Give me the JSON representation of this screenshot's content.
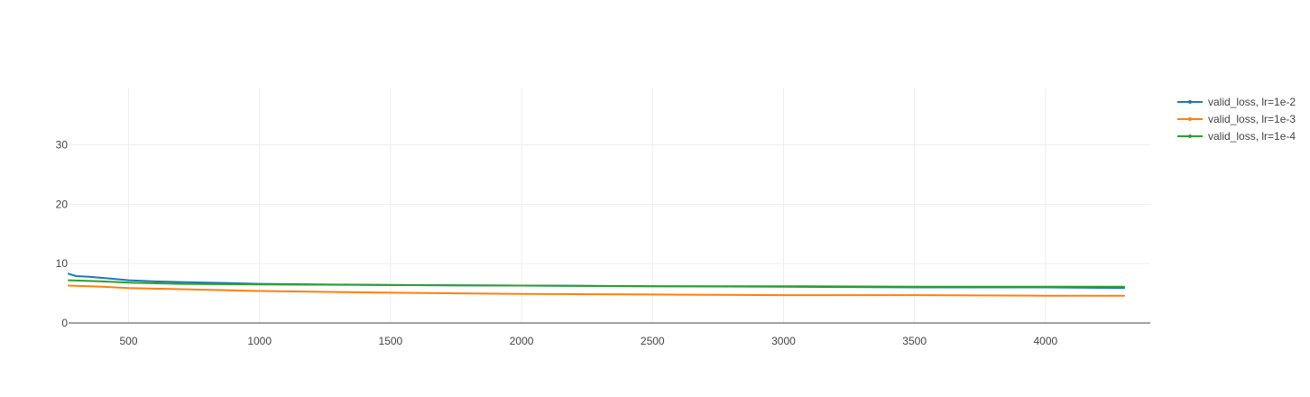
{
  "chart_data": {
    "type": "line",
    "title": "",
    "xlabel": "",
    "ylabel": "",
    "xlim": [
      271,
      4400
    ],
    "ylim": [
      0,
      39.5
    ],
    "x_ticks": [
      500,
      1000,
      1500,
      2000,
      2500,
      3000,
      3500,
      4000
    ],
    "y_ticks": [
      0,
      10,
      20,
      30
    ],
    "grid": true,
    "legend_position": "top-right",
    "series": [
      {
        "name": "valid_loss, lr=1e-2",
        "color": "#1f77b4",
        "x": [
          271,
          300,
          350,
          400,
          450,
          500,
          600,
          700,
          800,
          1000,
          1500,
          2000,
          2500,
          3000,
          3500,
          4000,
          4300
        ],
        "y": [
          8.3,
          7.9,
          7.8,
          7.6,
          7.4,
          7.2,
          7.0,
          6.9,
          6.8,
          6.6,
          6.4,
          6.3,
          6.2,
          6.1,
          6.0,
          6.0,
          5.9
        ]
      },
      {
        "name": "valid_loss, lr=1e-3",
        "color": "#ff7f0e",
        "x": [
          271,
          400,
          500,
          700,
          1000,
          1500,
          2000,
          2500,
          3000,
          3500,
          4000,
          4300
        ],
        "y": [
          6.3,
          6.1,
          5.9,
          5.7,
          5.4,
          5.1,
          4.9,
          4.8,
          4.7,
          4.7,
          4.6,
          4.6
        ]
      },
      {
        "name": "valid_loss, lr=1e-4",
        "color": "#2ca02c",
        "x": [
          271,
          400,
          500,
          700,
          1000,
          1500,
          2000,
          2500,
          3000,
          3500,
          4000,
          4300
        ],
        "y": [
          7.2,
          7.0,
          6.8,
          6.6,
          6.5,
          6.4,
          6.3,
          6.2,
          6.2,
          6.1,
          6.1,
          6.1
        ]
      }
    ]
  }
}
